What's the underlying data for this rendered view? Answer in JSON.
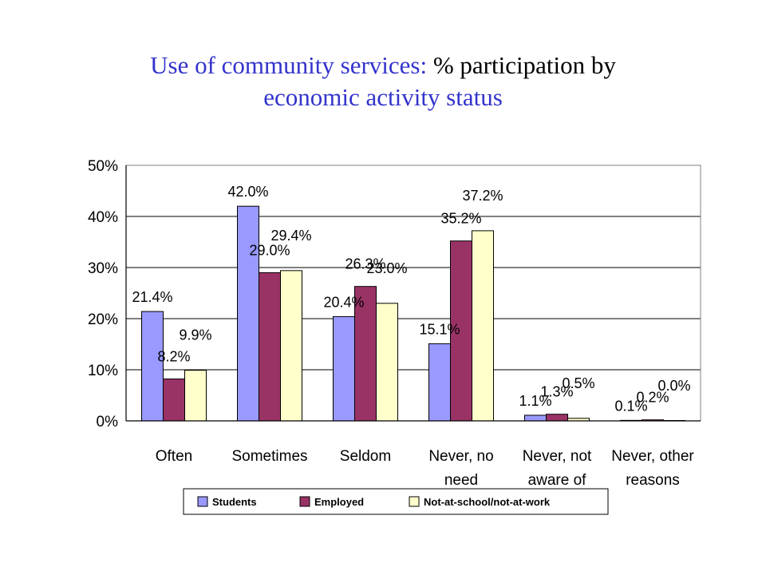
{
  "title": {
    "line1_part1": "Use of community services:",
    "line1_part2": "% participation by",
    "line2": "economic activity status"
  },
  "chart_data": {
    "type": "bar",
    "categories": [
      [
        "Often"
      ],
      [
        "Sometimes"
      ],
      [
        "Seldom"
      ],
      [
        "Never, no",
        "need"
      ],
      [
        "Never, not",
        "aware of"
      ],
      [
        "Never, other",
        "reasons"
      ]
    ],
    "series": [
      {
        "name": "Students",
        "values": [
          21.4,
          42.0,
          20.4,
          15.1,
          1.1,
          0.1
        ],
        "labels": [
          "21.4%",
          "42.0%",
          "20.4%",
          "15.1%",
          "1.1%",
          "0.1%"
        ],
        "color": "#9999ff"
      },
      {
        "name": "Employed",
        "values": [
          8.2,
          29.0,
          26.3,
          35.2,
          1.3,
          0.2
        ],
        "labels": [
          "8.2%",
          "29.0%",
          "26.3%",
          "35.2%",
          "1.3%",
          "0.2%"
        ],
        "color": "#993366"
      },
      {
        "name": "Not-at-school/not-at-work",
        "values": [
          9.9,
          29.4,
          23.0,
          37.2,
          0.5,
          0.0
        ],
        "labels": [
          "9.9%",
          "29.4%",
          "23.0%",
          "37.2%",
          "0.5%",
          "0.0%"
        ],
        "color": "#ffffcc"
      }
    ],
    "y_ticks": [
      "0%",
      "10%",
      "20%",
      "30%",
      "40%",
      "50%"
    ],
    "ylim": [
      0,
      50
    ],
    "grid": true,
    "legend_position": "bottom",
    "xlabel": "",
    "ylabel": ""
  }
}
